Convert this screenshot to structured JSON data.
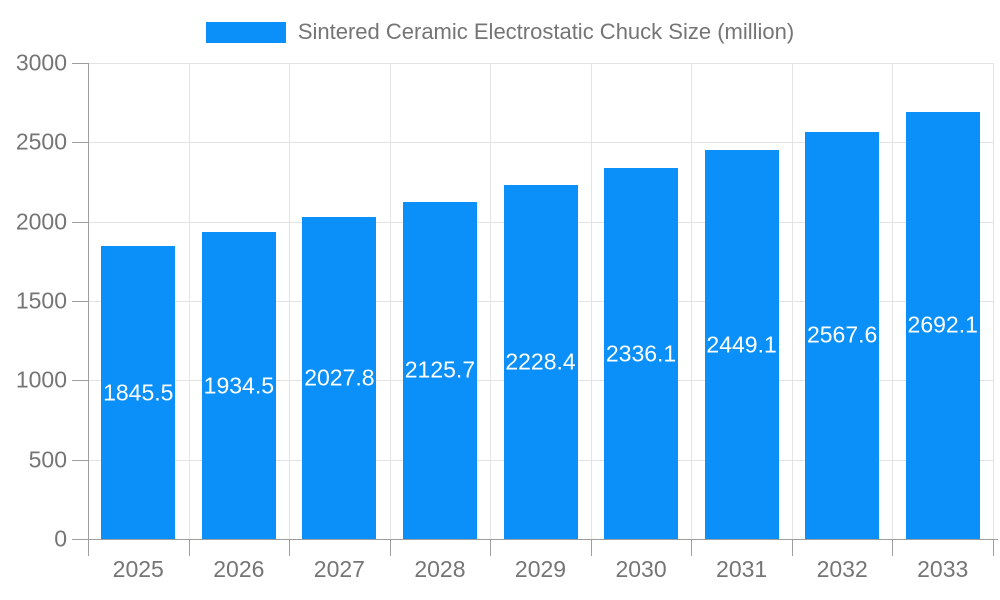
{
  "legend": {
    "swatch_icon": "series-color-swatch"
  },
  "chart_data": {
    "type": "bar",
    "title": "Sintered Ceramic Electrostatic Chuck Size (million)",
    "categories": [
      "2025",
      "2026",
      "2027",
      "2028",
      "2029",
      "2030",
      "2031",
      "2032",
      "2033"
    ],
    "series": [
      {
        "name": "Sintered Ceramic Electrostatic Chuck Size (million)",
        "values": [
          1845.5,
          1934.5,
          2027.8,
          2125.7,
          2228.4,
          2336.1,
          2449.1,
          2567.6,
          2692.1
        ]
      }
    ],
    "xlabel": "",
    "ylabel": "",
    "ylim": [
      0,
      3000
    ],
    "yticks": [
      0,
      500,
      1000,
      1500,
      2000,
      2500,
      3000
    ],
    "grid": true,
    "legend_position": "top",
    "value_label_position": "inside-center"
  },
  "colors": {
    "bar": "#0b90f9",
    "axis": "#9e9e9e",
    "grid": "#e3e3e3",
    "text": "#757575",
    "value_label": "#ffffff",
    "background": "#ffffff"
  }
}
